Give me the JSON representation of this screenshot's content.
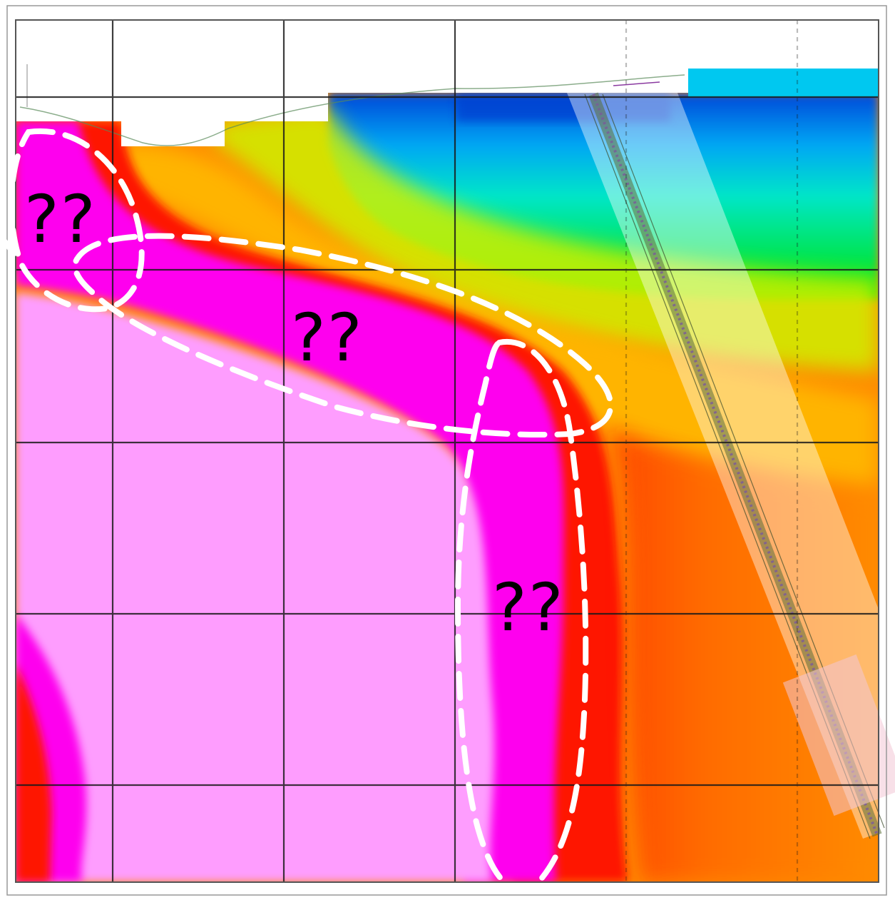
{
  "annotations": [
    {
      "id": "zone-upper-left",
      "text": "??"
    },
    {
      "id": "zone-middle",
      "text": "??"
    },
    {
      "id": "zone-lower-right",
      "text": "??"
    }
  ],
  "colors": {
    "background": "#ffffff",
    "grid": "#1a1a1a",
    "frame": "#555555",
    "marker": "#ffffff",
    "label": "#000000",
    "magenta_light": "#fe9dfe",
    "magenta": "#fe00ee",
    "red": "#fe1500",
    "orange": "#ff8a00",
    "yellow": "#fff000",
    "green": "#00e400",
    "cyan": "#00e8f8",
    "blue": "#0050e0",
    "well_band": "#ffffff"
  },
  "legend": []
}
